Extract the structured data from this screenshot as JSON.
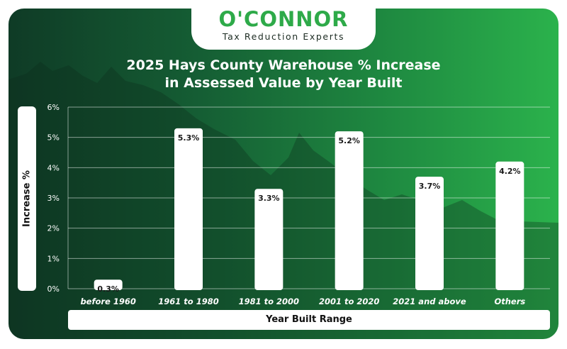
{
  "brand": {
    "name": "O'CONNOR",
    "tagline": "Tax Reduction Experts"
  },
  "colors": {
    "brand_green": "#2eaa49",
    "bar_fill": "#ffffff",
    "background_dark": "#0f3b26",
    "background_light": "#2bb24c"
  },
  "chart_data": {
    "type": "bar",
    "title": "2025 Hays County Warehouse % Increase in Assessed Value by Year Built",
    "title_lines": [
      "2025 Hays County Warehouse % Increase",
      "in Assessed Value by Year Built"
    ],
    "xlabel": "Year Built Range",
    "ylabel": "Increase %",
    "categories": [
      "before 1960",
      "1961 to 1980",
      "1981 to 2000",
      "2001 to 2020",
      "2021 and above",
      "Others"
    ],
    "values": [
      0.3,
      5.3,
      3.3,
      5.2,
      3.7,
      4.2
    ],
    "value_labels": [
      "0.3%",
      "5.3%",
      "3.3%",
      "5.2%",
      "3.7%",
      "4.2%"
    ],
    "yticks": [
      0,
      1,
      2,
      3,
      4,
      5,
      6
    ],
    "ytick_labels": [
      "0%",
      "1%",
      "2%",
      "3%",
      "4%",
      "5%",
      "6%"
    ],
    "ylim": [
      0,
      6
    ],
    "grid": true,
    "legend": "none"
  }
}
